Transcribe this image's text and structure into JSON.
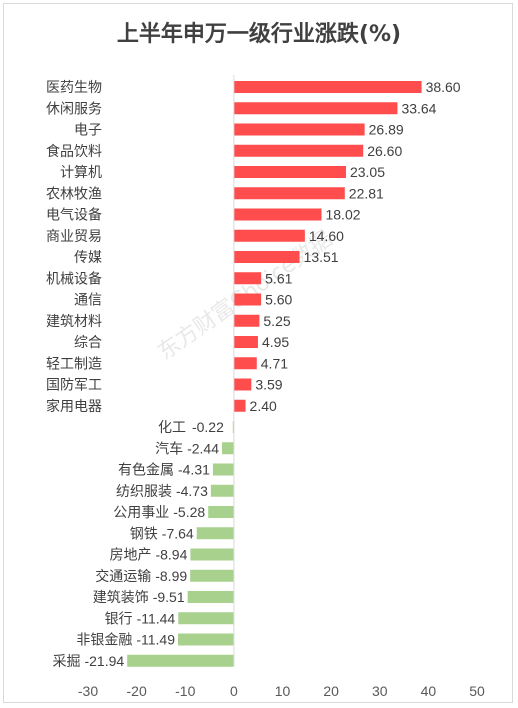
{
  "chart_data": {
    "type": "bar",
    "orientation": "horizontal",
    "title": "上半年申万一级行业涨跌(%)",
    "categories": [
      "医药生物",
      "休闲服务",
      "电子",
      "食品饮料",
      "计算机",
      "农林牧渔",
      "电气设备",
      "商业贸易",
      "传媒",
      "机械设备",
      "通信",
      "建筑材料",
      "综合",
      "轻工制造",
      "国防军工",
      "家用电器",
      "化工",
      "汽车",
      "有色金属",
      "纺织服装",
      "公用事业",
      "钢铁",
      "房地产",
      "交通运输",
      "建筑装饰",
      "银行",
      "非银金融",
      "采掘"
    ],
    "values": [
      38.6,
      33.64,
      26.89,
      26.6,
      23.05,
      22.81,
      18.02,
      14.6,
      13.51,
      5.61,
      5.6,
      5.25,
      4.95,
      4.71,
      3.59,
      2.4,
      -0.22,
      -2.44,
      -4.31,
      -4.73,
      -5.28,
      -7.64,
      -8.94,
      -8.99,
      -9.51,
      -11.44,
      -11.49,
      -21.94
    ],
    "value_labels": [
      "38.60",
      "33.64",
      "26.89",
      "26.60",
      "23.05",
      "22.81",
      "18.02",
      "14.60",
      "13.51",
      "5.61",
      "5.60",
      "5.25",
      "4.95",
      "4.71",
      "3.59",
      "2.40",
      "-0.22",
      "-2.44",
      "-4.31",
      "-4.73",
      "-5.28",
      "-7.64",
      "-8.94",
      "-8.99",
      "-9.51",
      "-11.44",
      "-11.49",
      "-21.94"
    ],
    "xlim": [
      -30,
      50
    ],
    "x_ticks": [
      "-30",
      "-20",
      "-10",
      "0",
      "10",
      "20",
      "30",
      "40",
      "50"
    ],
    "positive_color": "#ff4d4d",
    "negative_color": "#a9d18e",
    "grid": false,
    "watermark": "东方财富Choice数据"
  }
}
